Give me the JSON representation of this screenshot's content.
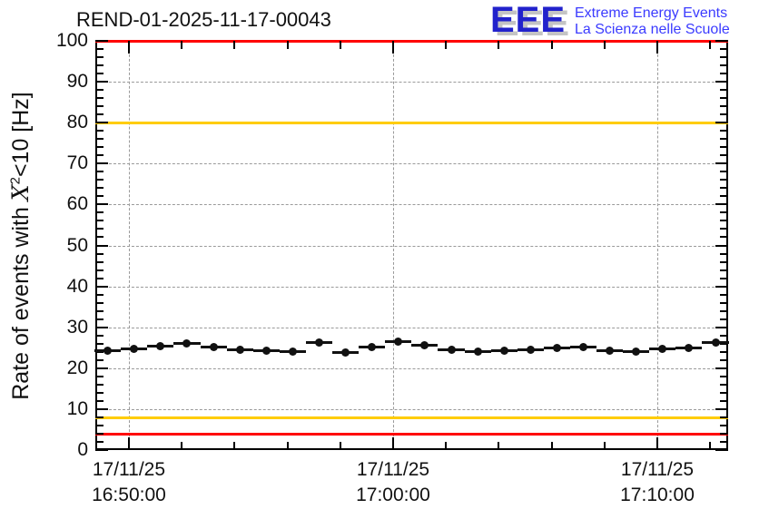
{
  "header": {
    "title": "REND-01-2025-11-17-00043"
  },
  "logo": {
    "acronym": "EEE",
    "line1": "Extreme Energy Events",
    "line2": "La Scienza nelle Scuole",
    "acronym_color": "#2222cc",
    "text_color": "#3b3bff"
  },
  "chart_data": {
    "type": "line",
    "title": "REND-01-2025-11-17-00043",
    "ylabel": "Rate of events with X^2<10 [Hz]",
    "ylabel_parts": {
      "pre": "Rate of events with ",
      "chi": "X",
      "sup": "2",
      "post": "<10 [Hz]"
    },
    "xlabel": "",
    "ylim": [
      0,
      100
    ],
    "y_major_step": 10,
    "y_minor_step": 2,
    "y_tick_labels": [
      "0",
      "10",
      "20",
      "30",
      "40",
      "50",
      "60",
      "70",
      "80",
      "90",
      "100"
    ],
    "x_domain_minutes_from_1650": [
      -1.27,
      22.68
    ],
    "x_major_ticks_minutes": [
      0,
      10,
      20
    ],
    "x_minor_step_minutes": 2,
    "x_tick_labels": [
      {
        "date": "17/11/25",
        "time": "16:50:00"
      },
      {
        "date": "17/11/25",
        "time": "17:00:00"
      },
      {
        "date": "17/11/25",
        "time": "17:10:00"
      }
    ],
    "grid": {
      "horizontal_values": [
        10,
        20,
        30,
        40,
        50,
        60,
        70,
        80,
        90
      ],
      "vertical_tick_minutes": [
        0,
        10,
        20
      ],
      "style": "dashed",
      "color": "#9a9a9a"
    },
    "thresholds": [
      {
        "value": 100,
        "color": "#ff0000"
      },
      {
        "value": 80,
        "color": "#ffcc00"
      },
      {
        "value": 8,
        "color": "#ffcc00"
      },
      {
        "value": 4,
        "color": "#ff0000"
      }
    ],
    "series": [
      {
        "name": "event-rate",
        "marker": "filled-circle",
        "color": "#111111",
        "x_err_minutes": 0.5,
        "points": [
          {
            "x_min": -0.8,
            "y_hz": 24.3
          },
          {
            "x_min": 0.2,
            "y_hz": 24.8
          },
          {
            "x_min": 1.2,
            "y_hz": 25.3
          },
          {
            "x_min": 2.2,
            "y_hz": 26.0
          },
          {
            "x_min": 3.2,
            "y_hz": 25.1
          },
          {
            "x_min": 4.2,
            "y_hz": 24.5
          },
          {
            "x_min": 5.2,
            "y_hz": 24.2
          },
          {
            "x_min": 6.2,
            "y_hz": 24.0
          },
          {
            "x_min": 7.2,
            "y_hz": 26.3
          },
          {
            "x_min": 8.2,
            "y_hz": 23.8
          },
          {
            "x_min": 9.2,
            "y_hz": 25.1
          },
          {
            "x_min": 10.2,
            "y_hz": 26.5
          },
          {
            "x_min": 11.2,
            "y_hz": 25.7
          },
          {
            "x_min": 12.2,
            "y_hz": 24.4
          },
          {
            "x_min": 13.2,
            "y_hz": 24.1
          },
          {
            "x_min": 14.2,
            "y_hz": 24.3
          },
          {
            "x_min": 15.2,
            "y_hz": 24.6
          },
          {
            "x_min": 16.2,
            "y_hz": 24.9
          },
          {
            "x_min": 17.2,
            "y_hz": 25.1
          },
          {
            "x_min": 18.2,
            "y_hz": 24.3
          },
          {
            "x_min": 19.2,
            "y_hz": 24.1
          },
          {
            "x_min": 20.2,
            "y_hz": 24.8
          },
          {
            "x_min": 21.2,
            "y_hz": 25.0
          },
          {
            "x_min": 22.2,
            "y_hz": 26.2
          }
        ]
      }
    ]
  }
}
